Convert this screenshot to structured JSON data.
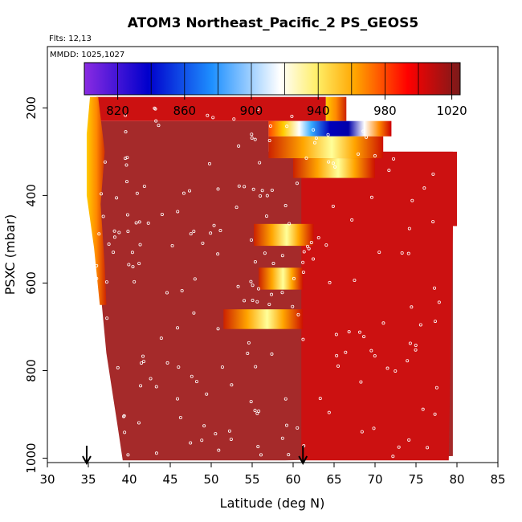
{
  "chart_data": {
    "type": "heatmap",
    "title": "ATOM3 Northeast_Pacific_2 PS_GEOS5",
    "flights_note": "Flts: 12,13",
    "dates_note": "MMDD: 1025,1027",
    "xlabel": "Latitude (deg N)",
    "ylabel": "PSXC (mbar)",
    "xlim": [
      30,
      85
    ],
    "ylim": [
      1010,
      60
    ],
    "x_ticks": [
      30,
      35,
      40,
      45,
      50,
      55,
      60,
      65,
      70,
      75,
      80,
      85
    ],
    "y_ticks": [
      200,
      400,
      600,
      800,
      1000
    ],
    "colorbar": {
      "min": 800,
      "max": 1025,
      "ticks": [
        820,
        860,
        900,
        940,
        980,
        1020
      ],
      "colors": [
        "#8a2be2",
        "#0000cc",
        "#1e90ff",
        "#ffffff",
        "#ffcc00",
        "#ff0000",
        "#8b1a1a"
      ]
    },
    "arrows_at_latitude": [
      34.8,
      61.2
    ],
    "colors": {
      "background_field": "#a52a2a",
      "high_red": "#cc1111",
      "outline": "#000000"
    }
  }
}
